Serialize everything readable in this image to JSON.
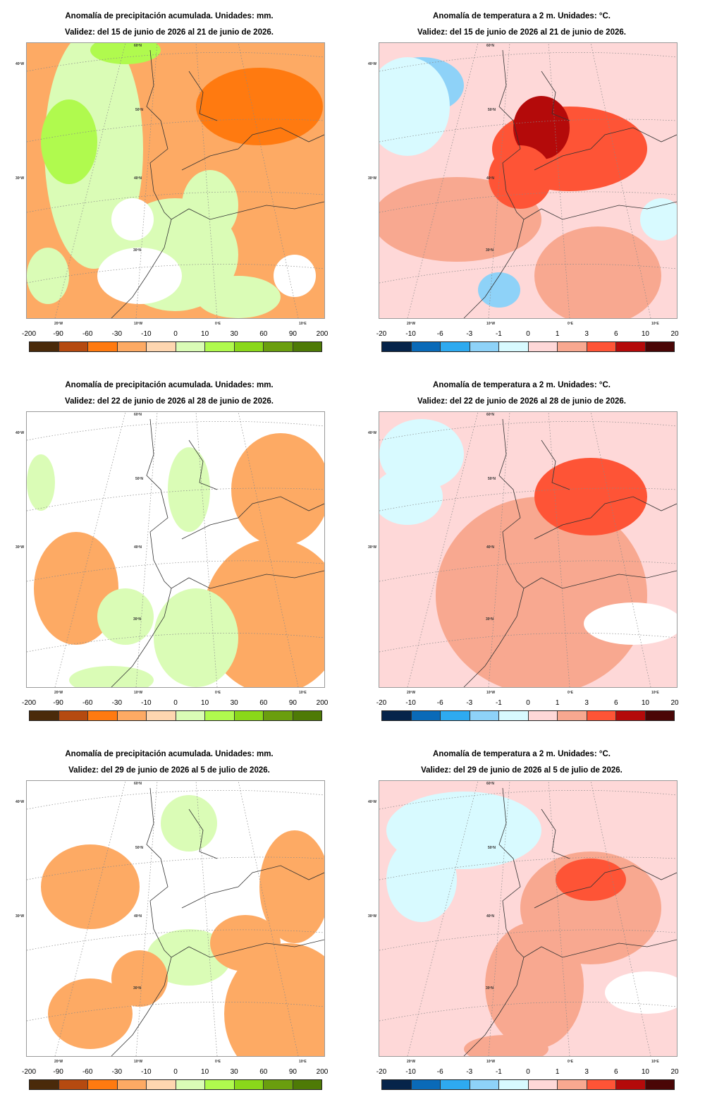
{
  "panels": [
    {
      "kind": "precip",
      "title": "Anomalía de precipitación acumulada. Unidades: mm.",
      "subtitle": "Validez: del 15 de junio de 2026 al 21 de junio de 2026."
    },
    {
      "kind": "temp",
      "title": "Anomalía de temperatura a 2 m. Unidades: °C.",
      "subtitle": "Validez: del 15 de junio de 2026 al 21 de junio de 2026."
    },
    {
      "kind": "precip",
      "title": "Anomalía de precipitación acumulada. Unidades: mm.",
      "subtitle": "Validez: del 22 de junio de 2026 al 28 de junio de 2026."
    },
    {
      "kind": "temp",
      "title": "Anomalía de temperatura a 2 m. Unidades: °C.",
      "subtitle": "Validez: del 22 de junio de 2026 al 28 de junio de 2026."
    },
    {
      "kind": "precip",
      "title": "Anomalía de precipitación acumulada. Unidades: mm.",
      "subtitle": "Validez: del 29 de junio de 2026 al 5 de julio de 2026."
    },
    {
      "kind": "temp",
      "title": "Anomalía de temperatura a 2 m. Unidades: °C.",
      "subtitle": "Validez: del 29 de junio de 2026 al 5 de julio de 2026."
    }
  ],
  "map_labels": {
    "lat": [
      "60ºN",
      "50ºN",
      "40ºN",
      "30ºN"
    ],
    "lon_left": [
      "40ºW",
      "30ºW"
    ],
    "lon_bottom": [
      "20ºW",
      "10ºW",
      "0ºE",
      "10ºE"
    ]
  },
  "legends": {
    "precip": {
      "labels": [
        "-200",
        "-90",
        "-60",
        "-30",
        "-10",
        "0",
        "10",
        "30",
        "60",
        "90",
        "200"
      ],
      "colors": [
        "#4a2a0a",
        "#b54a10",
        "#ff7a10",
        "#fdaa64",
        "#fed6b0",
        "#dafcb6",
        "#b0fa4e",
        "#8ad81a",
        "#6a9e0e",
        "#4e7a06"
      ]
    },
    "temp": {
      "labels": [
        "-20",
        "-10",
        "-6",
        "-3",
        "-1",
        "0",
        "1",
        "3",
        "6",
        "10",
        "20"
      ],
      "colors": [
        "#06244a",
        "#0a6ab8",
        "#2eaaf0",
        "#8ed2f8",
        "#d8faff",
        "#fed8d8",
        "#f8a890",
        "#fe5436",
        "#b40a0a",
        "#4a0606"
      ]
    }
  }
}
